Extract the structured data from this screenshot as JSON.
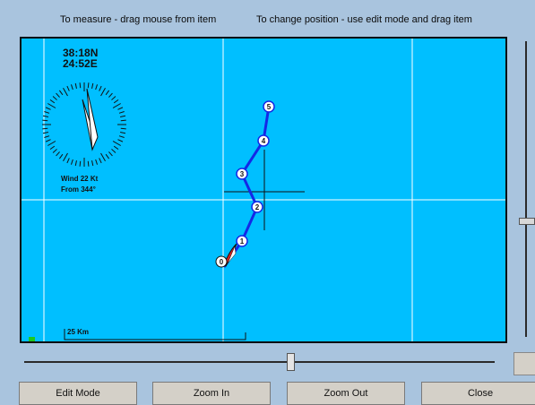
{
  "hints": {
    "measure": "To measure - drag mouse from item",
    "position": "To change position - use edit mode and drag item"
  },
  "position_readout": {
    "lat": "38:18N",
    "lon": "24:52E"
  },
  "wind": {
    "speed": "Wind 22 Kt",
    "from": "From 344°"
  },
  "scale_label": "25 Km",
  "waypoints": [
    "1",
    "2",
    "3",
    "4",
    "5"
  ],
  "boat_marker": "0",
  "colors": {
    "sea": "#00bfff",
    "route": "#1428e6",
    "grid": "#ffffff",
    "boat": "#d42020"
  },
  "buttons": {
    "edit": "Edit Mode",
    "zoom_in": "Zoom In",
    "zoom_out": "Zoom Out",
    "close": "Close"
  }
}
